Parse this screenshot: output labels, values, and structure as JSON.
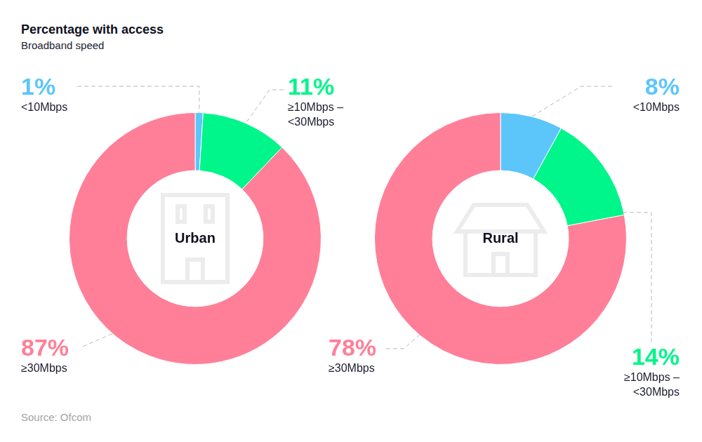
{
  "title": "Percentage with access",
  "subtitle": "Broadband speed",
  "source": "Source: Ofcom",
  "chart_data": [
    {
      "type": "doughnut",
      "title": "Urban",
      "categories": [
        "<10Mbps",
        "≥10Mbps – <30Mbps",
        "≥30Mbps"
      ],
      "values": [
        1,
        11,
        87
      ],
      "value_labels": [
        "1%",
        "11%",
        "87%"
      ],
      "colors": [
        "#5cc6fb",
        "#00f58a",
        "#ff7f98"
      ],
      "data_labels": true
    },
    {
      "type": "doughnut",
      "title": "Rural",
      "categories": [
        "<10Mbps",
        "≥10Mbps – <30Mbps",
        "≥30Mbps"
      ],
      "values": [
        8,
        14,
        78
      ],
      "value_labels": [
        "8%",
        "14%",
        "78%"
      ],
      "colors": [
        "#5cc6fb",
        "#00f58a",
        "#ff7f98"
      ],
      "data_labels": true
    }
  ]
}
